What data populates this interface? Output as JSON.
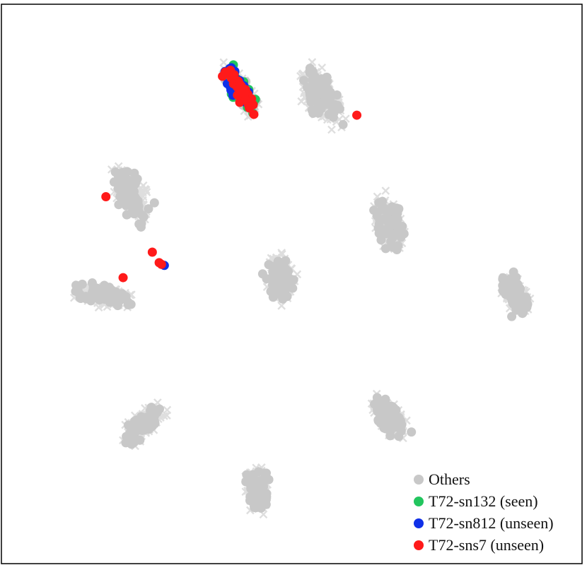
{
  "chart_data": {
    "type": "scatter",
    "title": "",
    "xlabel": "",
    "ylabel": "",
    "axes_visible": false,
    "grid": false,
    "frame": true,
    "legend_position": "bottom-right",
    "xlim": [
      0,
      100
    ],
    "ylim": [
      0,
      100
    ],
    "clusters": [
      {
        "name": "cluster-1",
        "cx": 55,
        "cy": 84,
        "w": 14,
        "h": 7,
        "angle": -60
      },
      {
        "name": "cluster-2",
        "cx": 22,
        "cy": 66,
        "w": 14,
        "h": 7,
        "angle": -70
      },
      {
        "name": "cluster-3",
        "cx": 67,
        "cy": 61,
        "w": 13,
        "h": 7,
        "angle": -80
      },
      {
        "name": "cluster-4",
        "cx": 48,
        "cy": 51,
        "w": 11,
        "h": 7,
        "angle": -75
      },
      {
        "name": "cluster-5",
        "cx": 17,
        "cy": 48,
        "w": 13,
        "h": 5,
        "angle": -10
      },
      {
        "name": "cluster-6",
        "cx": 89,
        "cy": 48,
        "w": 11,
        "h": 5,
        "angle": -65
      },
      {
        "name": "cluster-7",
        "cx": 24,
        "cy": 25,
        "w": 12,
        "h": 5,
        "angle": 45
      },
      {
        "name": "cluster-8",
        "cx": 67,
        "cy": 26,
        "w": 11,
        "h": 6,
        "angle": -55
      },
      {
        "name": "cluster-9",
        "cx": 44,
        "cy": 13,
        "w": 11,
        "h": 5,
        "angle": -85
      },
      {
        "name": "cluster-10",
        "cx": 41,
        "cy": 85,
        "w": 12,
        "h": 4,
        "angle": -60
      }
    ],
    "series": [
      {
        "name": "Others",
        "color": "#c8c8c8",
        "marker": "circle"
      },
      {
        "name": "T72-sn132 (seen)",
        "color": "#22c55e",
        "marker": "circle",
        "cluster": "cluster-10",
        "n": 45
      },
      {
        "name": "T72-sn812 (unseen)",
        "color": "#1030e8",
        "marker": "circle",
        "cluster": "cluster-10",
        "n": 50,
        "extra_points": [
          [
            27.7,
            53.4
          ]
        ]
      },
      {
        "name": "T72-sns7 (unseen)",
        "color": "#ff1a1a",
        "marker": "circle",
        "cluster": "cluster-10",
        "n": 45,
        "extra_points": [
          [
            61.3,
            80.5
          ],
          [
            17.5,
            65.8
          ],
          [
            25.6,
            55.8
          ],
          [
            27.2,
            53.6
          ],
          [
            26.8,
            53.9
          ],
          [
            20.5,
            51.2
          ]
        ]
      }
    ]
  }
}
